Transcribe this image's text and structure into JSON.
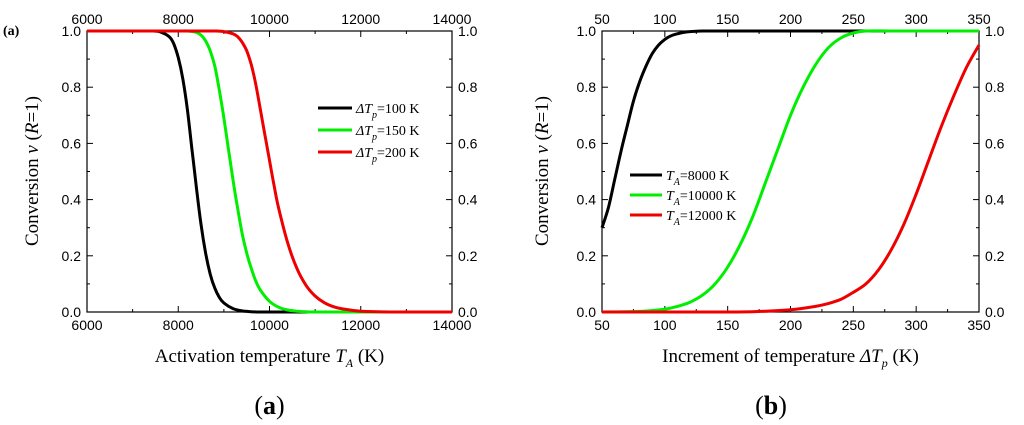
{
  "panel_a": {
    "corner_tag": "(a)",
    "caption_letter": "a",
    "xlabel_text": "Activation temperature ",
    "xlabel_sym": "T",
    "xlabel_sub": "A",
    "xlabel_unit": " (K)",
    "ylabel_text": "Conversion ",
    "ylabel_sym": "ν",
    "ylabel_paren_open": " (",
    "ylabel_R": "R",
    "ylabel_paren_close": "=1)"
  },
  "panel_b": {
    "caption_letter": "b",
    "xlabel_text": "Increment of temperature ",
    "xlabel_sym": "ΔT",
    "xlabel_sub": "p",
    "xlabel_unit": " (K)",
    "ylabel_text": "Conversion ",
    "ylabel_sym": "ν",
    "ylabel_paren_open": " (",
    "ylabel_R": "R",
    "ylabel_paren_close": "=1)"
  },
  "chart_data": [
    {
      "type": "line",
      "xlim": [
        6000,
        14000
      ],
      "ylim": [
        0,
        1
      ],
      "xticks": [
        "6000",
        "8000",
        "10000",
        "12000",
        "14000"
      ],
      "yticks": [
        "0.0",
        "0.2",
        "0.4",
        "0.6",
        "0.8",
        "1.0"
      ],
      "legend_position": "center-right",
      "grid": false,
      "series": [
        {
          "name": "ΔTp=100 K",
          "sym": "ΔT",
          "sub": "p",
          "val": "=100 K",
          "color": "#000000",
          "x": [
            6000,
            7000,
            7400,
            7600,
            7800,
            7900,
            8000,
            8100,
            8200,
            8300,
            8400,
            8500,
            8600,
            8700,
            8800,
            8900,
            9000,
            9200,
            9400,
            9600,
            9800,
            10000,
            10200,
            10400,
            11000,
            12000,
            14000
          ],
          "y": [
            1.0,
            1.0,
            1.0,
            0.997,
            0.98,
            0.955,
            0.905,
            0.83,
            0.72,
            0.58,
            0.44,
            0.31,
            0.21,
            0.135,
            0.085,
            0.052,
            0.032,
            0.012,
            0.004,
            0.001,
            0.0,
            0.0,
            0.0,
            0.0,
            0.0,
            0.0,
            0.0
          ]
        },
        {
          "name": "ΔTp=150 K",
          "sym": "ΔT",
          "sub": "p",
          "val": "=150 K",
          "color": "#00ee00",
          "x": [
            6000,
            7500,
            8000,
            8200,
            8400,
            8500,
            8600,
            8700,
            8800,
            8900,
            9000,
            9100,
            9200,
            9300,
            9400,
            9500,
            9600,
            9700,
            9800,
            10000,
            10200,
            10400,
            10600,
            10800,
            11000,
            12000,
            14000
          ],
          "y": [
            1.0,
            1.0,
            1.0,
            1.0,
            0.995,
            0.985,
            0.965,
            0.93,
            0.875,
            0.79,
            0.69,
            0.58,
            0.47,
            0.37,
            0.28,
            0.21,
            0.155,
            0.11,
            0.078,
            0.038,
            0.017,
            0.007,
            0.003,
            0.001,
            0.0,
            0.0,
            0.0
          ]
        },
        {
          "name": "ΔTp=200 K",
          "sym": "ΔT",
          "sub": "p",
          "val": "=200 K",
          "color": "#ee0000",
          "x": [
            6000,
            8000,
            8600,
            8800,
            9000,
            9200,
            9300,
            9400,
            9500,
            9600,
            9700,
            9800,
            9900,
            10000,
            10100,
            10200,
            10400,
            10600,
            10800,
            11000,
            11200,
            11400,
            11600,
            12000,
            12500,
            13000,
            14000
          ],
          "y": [
            1.0,
            1.0,
            1.0,
            1.0,
            0.998,
            0.99,
            0.98,
            0.96,
            0.93,
            0.88,
            0.81,
            0.72,
            0.63,
            0.54,
            0.45,
            0.37,
            0.245,
            0.155,
            0.095,
            0.057,
            0.033,
            0.019,
            0.011,
            0.003,
            0.0005,
            0.0,
            0.0
          ]
        }
      ]
    },
    {
      "type": "line",
      "xlim": [
        50,
        350
      ],
      "ylim": [
        0,
        1
      ],
      "xticks": [
        "50",
        "100",
        "150",
        "200",
        "250",
        "300",
        "350"
      ],
      "yticks": [
        "0.0",
        "0.2",
        "0.4",
        "0.6",
        "0.8",
        "1.0"
      ],
      "legend_position": "center-left",
      "grid": false,
      "series": [
        {
          "name": "TA=8000 K",
          "sym": "T",
          "sub": "A",
          "val": "=8000 K",
          "color": "#000000",
          "x": [
            50,
            55,
            60,
            65,
            70,
            75,
            80,
            85,
            90,
            95,
            100,
            105,
            110,
            115,
            120,
            125,
            130,
            140,
            150,
            200,
            250,
            300,
            350
          ],
          "y": [
            0.3,
            0.37,
            0.47,
            0.57,
            0.66,
            0.75,
            0.82,
            0.875,
            0.92,
            0.95,
            0.97,
            0.983,
            0.99,
            0.995,
            0.998,
            0.999,
            1.0,
            1.0,
            1.0,
            1.0,
            1.0,
            1.0,
            1.0
          ]
        },
        {
          "name": "TA=10000 K",
          "sym": "T",
          "sub": "A",
          "val": "=10000 K",
          "color": "#00ee00",
          "x": [
            50,
            80,
            100,
            110,
            120,
            130,
            140,
            150,
            160,
            170,
            180,
            190,
            200,
            210,
            220,
            230,
            240,
            250,
            260,
            280,
            300,
            350
          ],
          "y": [
            0.0,
            0.002,
            0.01,
            0.02,
            0.035,
            0.06,
            0.1,
            0.16,
            0.24,
            0.34,
            0.46,
            0.58,
            0.7,
            0.8,
            0.88,
            0.94,
            0.975,
            0.993,
            1.0,
            1.0,
            1.0,
            1.0
          ]
        },
        {
          "name": "TA=12000 K",
          "sym": "T",
          "sub": "A",
          "val": "=12000 K",
          "color": "#ee0000",
          "x": [
            50,
            150,
            180,
            200,
            220,
            230,
            240,
            250,
            260,
            270,
            280,
            290,
            300,
            310,
            320,
            330,
            340,
            350
          ],
          "y": [
            0.0,
            0.0,
            0.003,
            0.008,
            0.02,
            0.03,
            0.045,
            0.07,
            0.1,
            0.15,
            0.22,
            0.31,
            0.42,
            0.54,
            0.66,
            0.77,
            0.87,
            0.95
          ]
        }
      ]
    }
  ]
}
